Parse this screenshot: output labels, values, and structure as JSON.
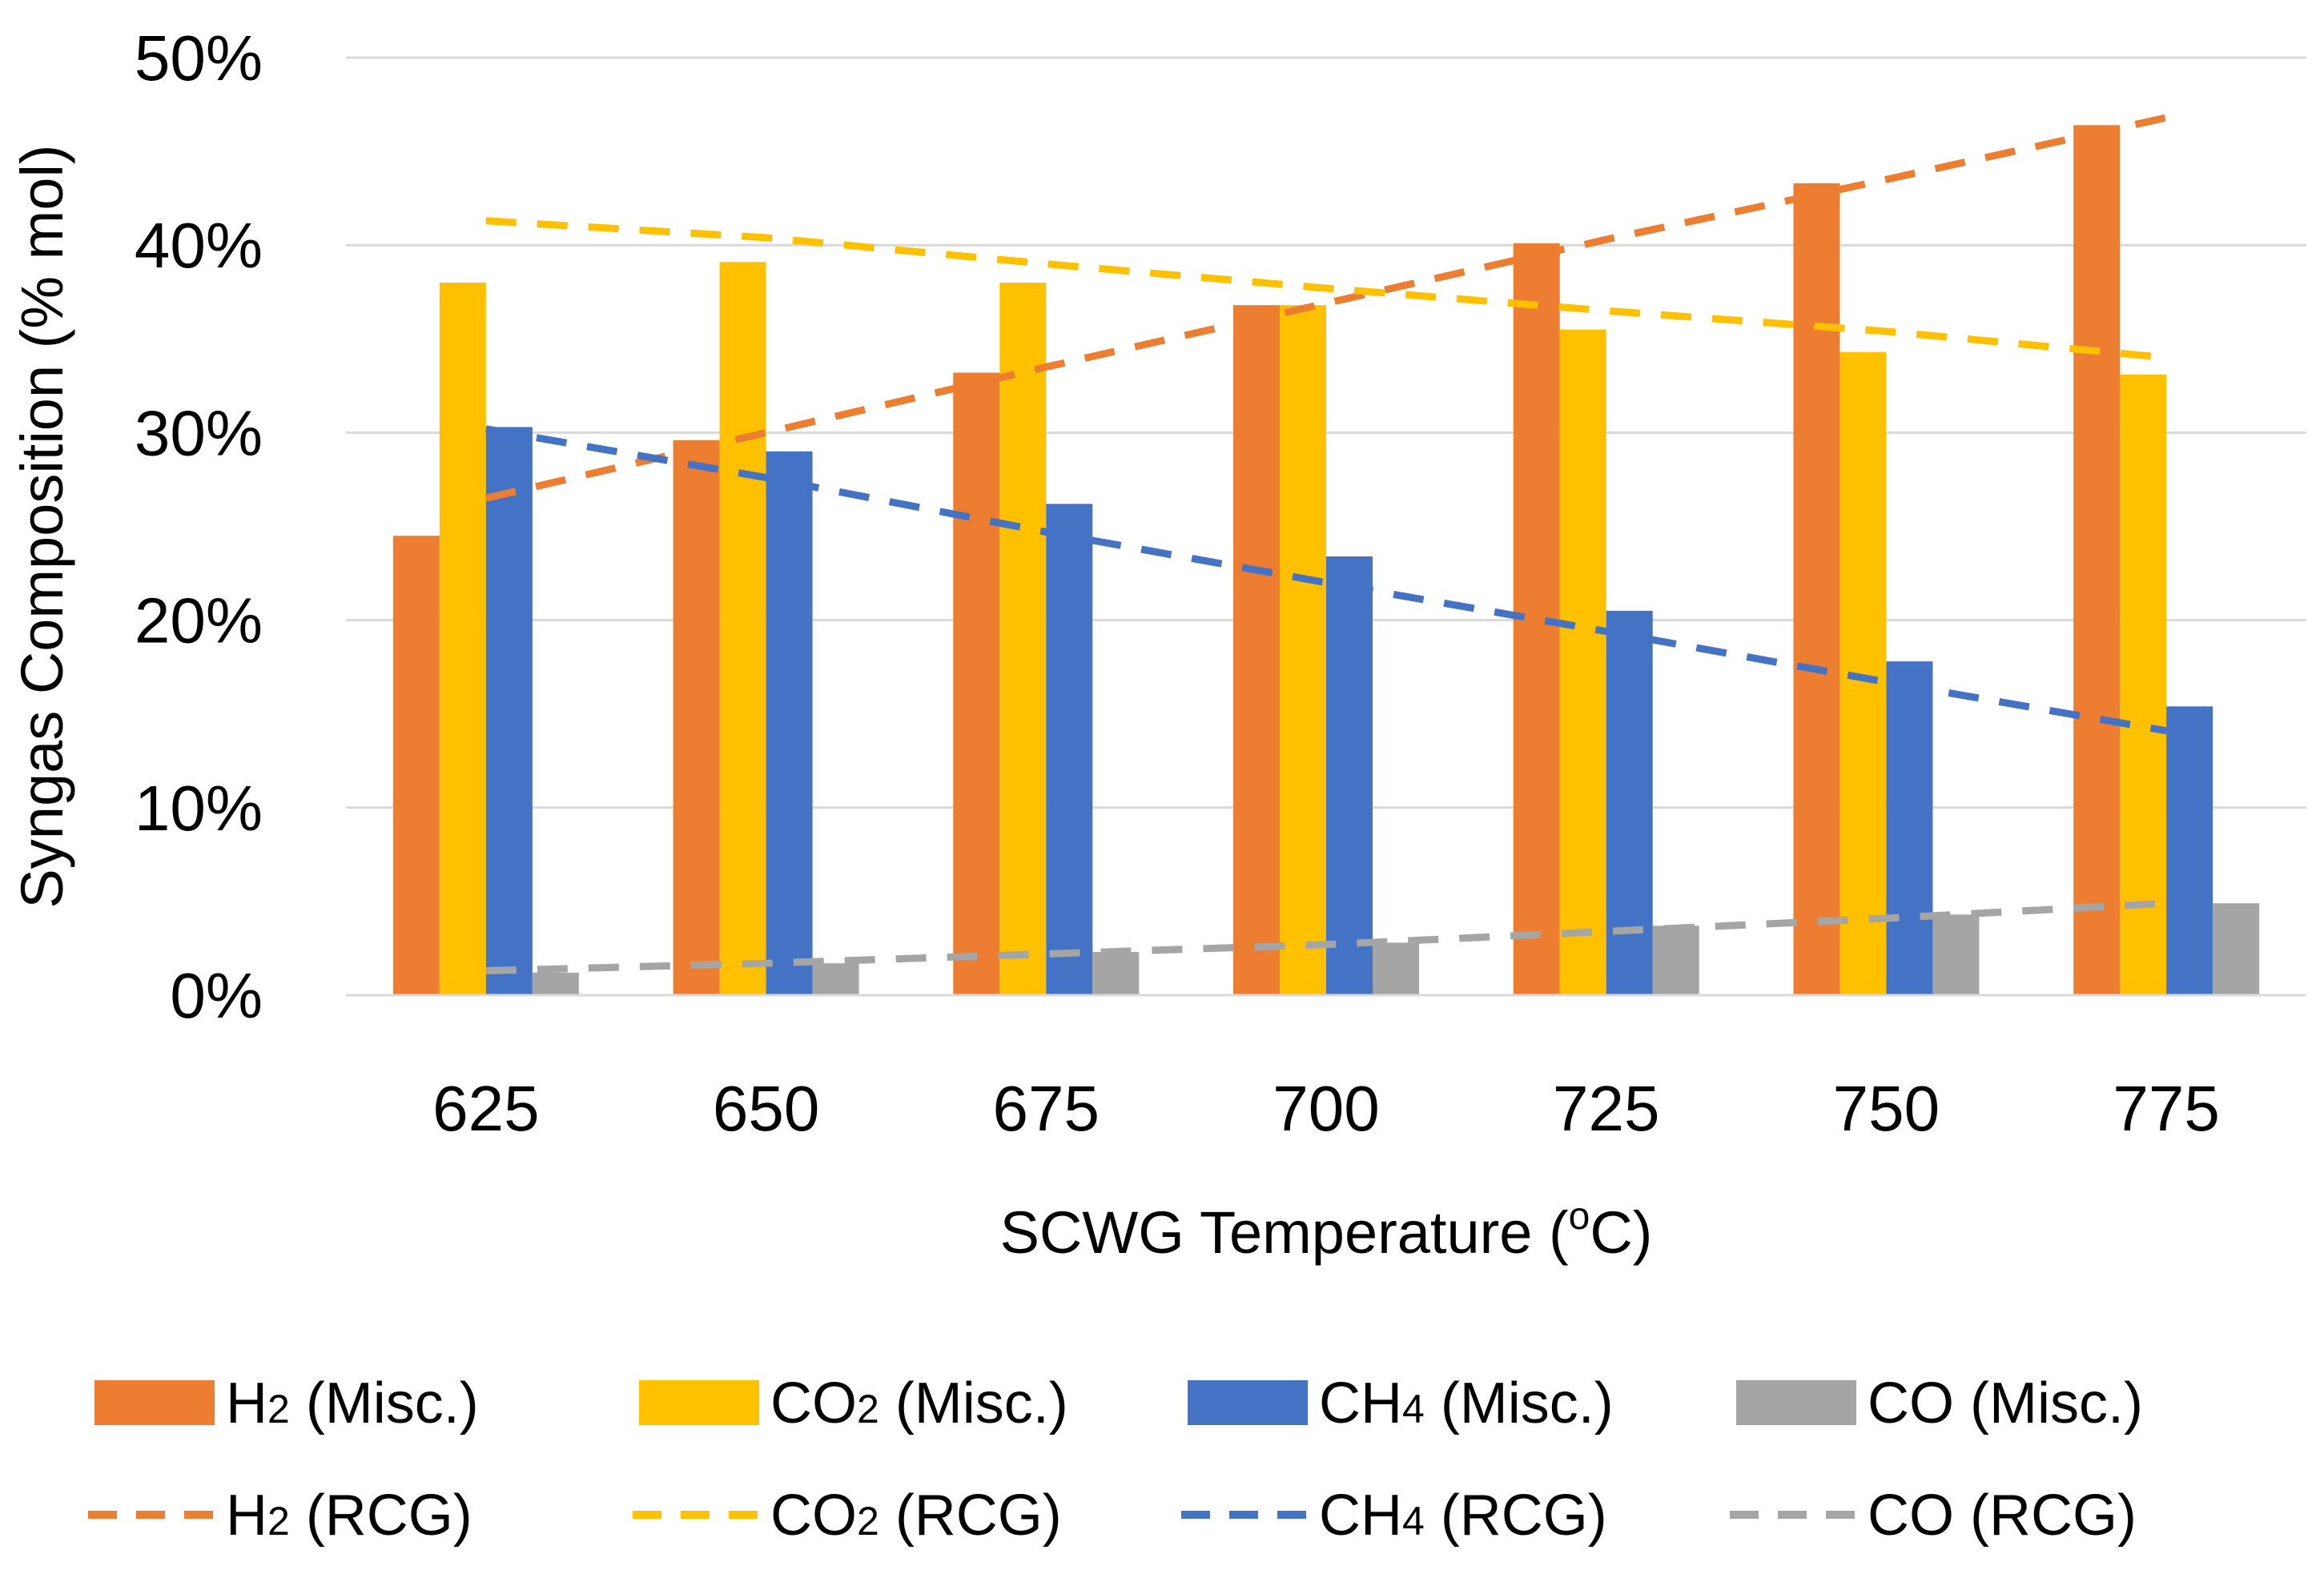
{
  "chart_data": {
    "type": "bar",
    "title": "",
    "xlabel": "SCWG Temperature (oC)",
    "ylabel": "Syngas Composition (% mol)",
    "ylim": [
      0,
      50
    ],
    "y_tick_format": "percent",
    "y_ticks": [
      "0%",
      "10%",
      "20%",
      "30%",
      "40%",
      "50%"
    ],
    "categories": [
      "625",
      "650",
      "675",
      "700",
      "725",
      "750",
      "775"
    ],
    "grid": true,
    "legend_position": "bottom",
    "series": [
      {
        "name": "H₂ (Misc.)",
        "base": "H",
        "sub": "2",
        "suffix": " (Misc.)",
        "kind": "bar",
        "color": "#ED7D31",
        "values": [
          24.5,
          29.6,
          33.2,
          36.8,
          40.1,
          43.3,
          46.4
        ]
      },
      {
        "name": "CO₂ (Misc.)",
        "base": "CO",
        "sub": "2",
        "suffix": " (Misc.)",
        "kind": "bar",
        "color": "#FFC000",
        "values": [
          38.0,
          39.1,
          38.0,
          36.8,
          35.5,
          34.3,
          33.1
        ]
      },
      {
        "name": "CH₄ (Misc.)",
        "base": "CH",
        "sub": "4",
        "suffix": " (Misc.)",
        "kind": "bar",
        "color": "#4472C4",
        "values": [
          30.3,
          29.0,
          26.2,
          23.4,
          20.5,
          17.8,
          15.4
        ]
      },
      {
        "name": "CO (Misc.)",
        "base": "CO",
        "sub": "",
        "suffix": " (Misc.)",
        "kind": "bar",
        "color": "#A5A5A5",
        "values": [
          1.2,
          1.7,
          2.3,
          2.8,
          3.7,
          4.3,
          4.9
        ]
      },
      {
        "name": "H₂ (RCG)",
        "base": "H",
        "sub": "2",
        "suffix": " (RCG)",
        "kind": "dashed-line",
        "color": "#ED7D31",
        "values": [
          26.5,
          30.0,
          33.5,
          36.9,
          40.3,
          43.5,
          46.8
        ]
      },
      {
        "name": "CO₂ (RCG)",
        "base": "CO",
        "sub": "2",
        "suffix": " (RCG)",
        "kind": "dashed-line",
        "color": "#FFC000",
        "values": [
          41.3,
          40.4,
          39.0,
          37.7,
          36.5,
          35.4,
          34.0
        ]
      },
      {
        "name": "CH₄ (RCG)",
        "base": "CH",
        "sub": "4",
        "suffix": " (RCG)",
        "kind": "dashed-line",
        "color": "#4472C4",
        "values": [
          30.2,
          27.6,
          24.7,
          22.0,
          19.4,
          16.7,
          14.1
        ]
      },
      {
        "name": "CO (RCG)",
        "base": "CO",
        "sub": "",
        "suffix": " (RCG)",
        "kind": "dashed-line",
        "color": "#A5A5A5",
        "values": [
          1.3,
          1.7,
          2.2,
          2.7,
          3.4,
          4.1,
          4.9
        ]
      }
    ]
  }
}
